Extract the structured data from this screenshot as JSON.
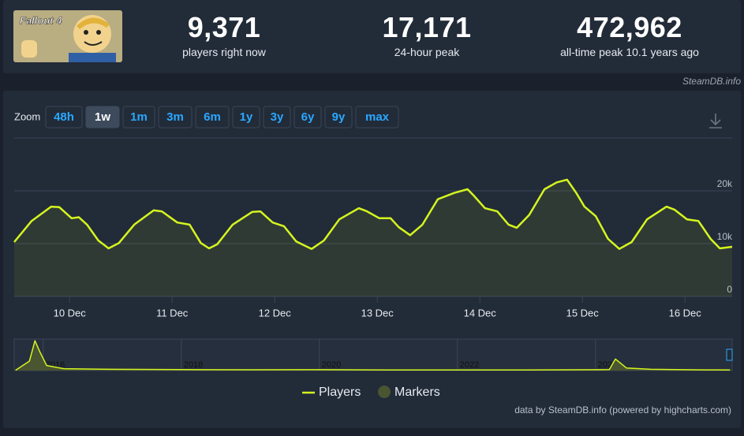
{
  "header": {
    "image_title": "Fallout 4",
    "stats": [
      {
        "value": "9,371",
        "label": "players right now"
      },
      {
        "value": "17,171",
        "label": "24-hour peak"
      },
      {
        "value": "472,962",
        "label": "all-time peak 10.1 years ago"
      }
    ],
    "source": "SteamDB.info"
  },
  "zoom": {
    "label": "Zoom",
    "buttons": [
      "48h",
      "1w",
      "1m",
      "3m",
      "6m",
      "1y",
      "3y",
      "6y",
      "9y",
      "max"
    ],
    "active": 1
  },
  "chart_data": [
    {
      "type": "line",
      "series": [
        {
          "name": "Players",
          "color": "#d4f51f",
          "x": [
            -0.54,
            -0.37,
            -0.18,
            -0.1,
            0.02,
            0.09,
            0.17,
            0.28,
            0.38,
            0.48,
            0.63,
            0.82,
            0.9,
            1.05,
            1.17,
            1.28,
            1.36,
            1.44,
            1.59,
            1.78,
            1.86,
            1.98,
            2.09,
            2.21,
            2.36,
            2.48,
            2.63,
            2.82,
            2.9,
            3.02,
            3.13,
            3.21,
            3.32,
            3.44,
            3.59,
            3.75,
            3.88,
            3.94,
            4.05,
            4.17,
            4.28,
            4.36,
            4.48,
            4.63,
            4.75,
            4.85,
            4.94,
            5.02,
            5.13,
            5.25,
            5.36,
            5.48,
            5.63,
            5.82,
            5.9,
            6.02,
            6.13,
            6.25,
            6.34,
            6.46
          ],
          "values": [
            10300,
            14300,
            17000,
            16900,
            14800,
            15000,
            13600,
            10600,
            9100,
            10100,
            13600,
            16300,
            16100,
            14000,
            13600,
            10100,
            9100,
            9900,
            13600,
            16000,
            16100,
            14000,
            13300,
            10400,
            9000,
            10600,
            14600,
            16700,
            16100,
            14800,
            14800,
            13100,
            11600,
            13600,
            18400,
            19600,
            20300,
            19100,
            16700,
            16100,
            13600,
            13000,
            15400,
            20300,
            21600,
            22100,
            19600,
            17000,
            15200,
            10900,
            9000,
            10300,
            14600,
            17000,
            16400,
            14600,
            14300,
            10900,
            9100,
            9400
          ]
        }
      ],
      "markers": {
        "name": "Markers",
        "color": "#4a5531"
      },
      "xlim": [
        -0.54,
        6.46
      ],
      "xticks": [
        {
          "value": 0,
          "label": "10 Dec"
        },
        {
          "value": 1,
          "label": "11 Dec"
        },
        {
          "value": 2,
          "label": "12 Dec"
        },
        {
          "value": 3,
          "label": "13 Dec"
        },
        {
          "value": 4,
          "label": "14 Dec"
        },
        {
          "value": 5,
          "label": "15 Dec"
        },
        {
          "value": 6,
          "label": "16 Dec"
        }
      ],
      "ylim": [
        0,
        30000
      ],
      "yticks": [
        0,
        {
          "value": 10000,
          "label": "10k"
        },
        {
          "value": 20000,
          "label": "20k"
        }
      ],
      "grid": true
    },
    {
      "type": "line",
      "series": [
        {
          "color": "#d4f51f",
          "x": [
            2015.6,
            2015.8,
            2015.88,
            2015.95,
            2016.05,
            2016.3,
            2017,
            2018,
            2019,
            2020,
            2021,
            2022,
            2023,
            2024.2,
            2024.29,
            2024.45,
            2024.8,
            2025.4,
            2025.95
          ],
          "values": [
            5000,
            150000,
            472962,
            300000,
            80000,
            30000,
            20000,
            15000,
            12000,
            14000,
            10000,
            10000,
            9000,
            15000,
            183000,
            40000,
            20000,
            12000,
            9371
          ]
        }
      ],
      "xlim": [
        2015.58,
        2025.98
      ],
      "xticks": [
        2016,
        2018,
        2020,
        2022,
        2024
      ],
      "ylim": [
        0,
        500000
      ]
    }
  ],
  "credit": "data by SteamDB.info (powered by highcharts.com)"
}
